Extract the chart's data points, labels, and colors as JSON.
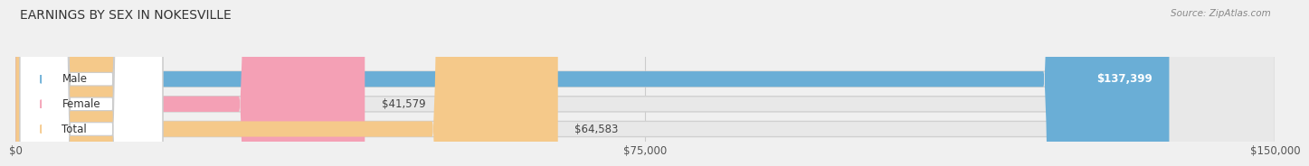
{
  "title": "EARNINGS BY SEX IN NOKESVILLE",
  "source": "Source: ZipAtlas.com",
  "categories": [
    "Male",
    "Female",
    "Total"
  ],
  "values": [
    137399,
    41579,
    64583
  ],
  "max_value": 150000,
  "bar_colors": [
    "#6aaed6",
    "#f4a0b5",
    "#f5c98a"
  ],
  "bar_value_labels": [
    "$137,399",
    "$41,579",
    "$64,583"
  ],
  "xtick_values": [
    0,
    75000,
    150000
  ],
  "xtick_labels": [
    "$0",
    "$75,000",
    "$150,000"
  ],
  "background_color": "#f0f0f0",
  "bar_track_color": "#e8e8e8",
  "title_fontsize": 10,
  "source_fontsize": 7.5,
  "bar_height": 0.62,
  "figsize": [
    14.06,
    1.96
  ]
}
